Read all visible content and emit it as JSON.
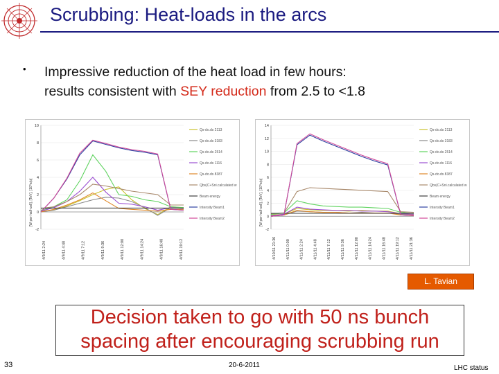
{
  "slide": {
    "title": "Scrubbing: Heat-loads in the arcs",
    "bullet": "•",
    "bullet_line1": "Impressive reduction of the heat load in few hours:",
    "bullet_line2_pre": "results consistent with ",
    "bullet_line2_sey": "SEY reduction",
    "bullet_line2_post": " from 2.5 to <1.8",
    "credit": "L. Tavian",
    "decision_line1": "Decision taken to go with 50 ns bunch",
    "decision_line2": "spacing after encouraging scrubbing run",
    "page_number": "33",
    "date": "20-6-2011",
    "footer_right": "LHC status",
    "colors": {
      "title": "#1a1a80",
      "highlight": "#d42a1a",
      "credit_bg": "#e55a00"
    },
    "logo_icon": "cern-logo-icon"
  },
  "chart_data": [
    {
      "type": "line",
      "ylabel": "[W per half-cell], [TeV], [10^e/p]",
      "ylim": [
        -2,
        10
      ],
      "yticks": [
        -2,
        0,
        2,
        4,
        6,
        8,
        10
      ],
      "xticks": [
        "4/9/11 2:24",
        "4/9/11 4:48",
        "4/9/11 7:12",
        "4/9/11 9:36",
        "4/9/11 12:00",
        "4/9/11 14:24",
        "4/9/11 16:48",
        "4/9/11 19:12"
      ],
      "series": [
        {
          "name": "Qs-do.ds 2113",
          "color": "#c9c22a",
          "values": [
            0.1,
            0.2,
            0.7,
            1.3,
            2.0,
            2.6,
            2.9,
            1.4,
            0.4,
            -0.3,
            0.6,
            0.5
          ]
        },
        {
          "name": "Qs-do.ds 3183",
          "color": "#8a8a8a",
          "values": [
            0.0,
            0.2,
            0.6,
            1.0,
            1.4,
            1.7,
            1.6,
            1.2,
            0.5,
            -0.4,
            0.5,
            0.5
          ]
        },
        {
          "name": "Qs-do.ds 2514",
          "color": "#5fd35f",
          "values": [
            0.2,
            0.6,
            1.4,
            3.6,
            6.6,
            4.7,
            2.0,
            1.8,
            1.4,
            1.2,
            0.6,
            0.5
          ]
        },
        {
          "name": "Qs-do.ds 1116",
          "color": "#9b4fd1",
          "values": [
            0.1,
            0.5,
            1.2,
            2.4,
            4.0,
            2.3,
            1.0,
            0.9,
            0.6,
            0.2,
            0.5,
            0.4
          ]
        },
        {
          "name": "Qs-do.ds 8387",
          "color": "#e0882a",
          "values": [
            0.0,
            0.3,
            0.8,
            1.4,
            2.2,
            1.3,
            0.4,
            0.3,
            0.2,
            0.1,
            0.3,
            0.3
          ]
        },
        {
          "name": "Qbs(C+Sni.calculated with beam parameters)",
          "color": "#a8886a",
          "values": [
            0.4,
            0.6,
            1.2,
            2.0,
            3.2,
            3.0,
            2.7,
            2.4,
            2.2,
            2.0,
            0.8,
            0.8
          ]
        },
        {
          "name": "Beam energy",
          "color": "#3d3d3d",
          "values": [
            0.45,
            0.45,
            0.45,
            0.45,
            0.45,
            0.45,
            0.45,
            0.45,
            0.45,
            0.45,
            0.45,
            0.45
          ]
        },
        {
          "name": "Intensity Beam1",
          "color": "#2a3fa0",
          "values": [
            0.0,
            1.6,
            3.8,
            6.6,
            8.2,
            7.8,
            7.4,
            7.1,
            6.9,
            6.6,
            0.3,
            0.2
          ]
        },
        {
          "name": "Intensity Beam2",
          "color": "#d14a9a",
          "values": [
            0.0,
            1.6,
            3.9,
            6.8,
            8.3,
            7.9,
            7.5,
            7.2,
            7.0,
            6.7,
            0.3,
            0.2
          ]
        }
      ]
    },
    {
      "type": "line",
      "ylabel": "[W per half-cell], [TeV], [10^e/p]",
      "ylim": [
        -2,
        14
      ],
      "yticks": [
        -2,
        0,
        2,
        4,
        6,
        8,
        10,
        12,
        14
      ],
      "xticks": [
        "4/10/11 21:36",
        "4/11/11 0:00",
        "4/11/11 2:24",
        "4/11/11 4:48",
        "4/11/11 7:12",
        "4/11/11 9:36",
        "4/11/11 12:00",
        "4/11/11 14:24",
        "4/11/11 16:48",
        "4/11/11 19:12",
        "4/11/11 21:36"
      ],
      "series": [
        {
          "name": "Qs-do.ds 2113",
          "color": "#c9c22a",
          "values": [
            0.2,
            0.3,
            1.2,
            1.0,
            0.9,
            0.9,
            0.8,
            0.9,
            0.8,
            0.8,
            0.4,
            0.3
          ]
        },
        {
          "name": "Qs-do.ds 3183",
          "color": "#8a8a8a",
          "values": [
            0.1,
            0.2,
            0.8,
            0.7,
            0.6,
            0.6,
            0.5,
            0.6,
            0.5,
            0.5,
            0.3,
            0.2
          ]
        },
        {
          "name": "Qs-do.ds 2514",
          "color": "#5fd35f",
          "values": [
            0.3,
            0.5,
            2.4,
            1.9,
            1.6,
            1.5,
            1.4,
            1.4,
            1.3,
            1.2,
            0.6,
            0.4
          ]
        },
        {
          "name": "Qs-do.ds 1116",
          "color": "#9b4fd1",
          "values": [
            0.1,
            0.3,
            1.4,
            1.1,
            1.0,
            0.9,
            0.9,
            0.8,
            0.8,
            0.7,
            0.4,
            0.3
          ]
        },
        {
          "name": "Qs-do.ds 8387",
          "color": "#e0882a",
          "values": [
            0.0,
            0.2,
            0.9,
            0.7,
            0.6,
            0.6,
            0.5,
            0.5,
            0.5,
            0.5,
            0.2,
            0.2
          ]
        },
        {
          "name": "Qbs(C+Sni.calculated with beam parameters)",
          "color": "#a8886a",
          "values": [
            0.4,
            0.5,
            3.8,
            4.4,
            4.3,
            4.2,
            4.1,
            4.0,
            3.9,
            3.8,
            0.7,
            0.6
          ]
        },
        {
          "name": "Beam energy",
          "color": "#3d3d3d",
          "values": [
            0.45,
            0.45,
            0.45,
            0.45,
            0.45,
            0.45,
            0.45,
            0.45,
            0.45,
            0.45,
            0.45,
            0.45
          ]
        },
        {
          "name": "Intensity Beam1",
          "color": "#2a3fa0",
          "values": [
            0.0,
            0.2,
            11.0,
            12.5,
            11.6,
            10.8,
            10.0,
            9.2,
            8.5,
            7.9,
            0.2,
            0.1
          ]
        },
        {
          "name": "Intensity Beam2",
          "color": "#d14a9a",
          "values": [
            0.0,
            0.2,
            11.2,
            12.7,
            11.8,
            11.0,
            10.2,
            9.4,
            8.7,
            8.1,
            0.2,
            0.1
          ]
        }
      ]
    }
  ]
}
